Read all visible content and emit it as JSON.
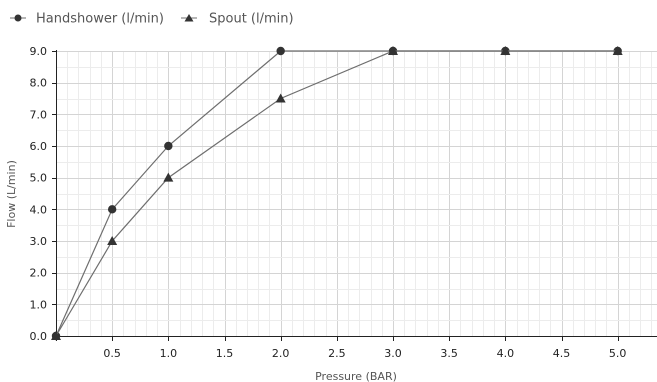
{
  "chart_data": {
    "type": "line",
    "xlabel": "Pressure (BAR)",
    "ylabel": "Flow (L/min)",
    "xlim": [
      0,
      5.35
    ],
    "ylim": [
      0,
      9
    ],
    "x_ticks": [
      "0.5",
      "1.0",
      "1.5",
      "2.0",
      "2.5",
      "3.0",
      "3.5",
      "4.0",
      "4.5",
      "5.0"
    ],
    "y_ticks": [
      "0.0",
      "1.0",
      "2.0",
      "3.0",
      "4.0",
      "5.0",
      "6.0",
      "7.0",
      "8.0",
      "9.0"
    ],
    "grid": true,
    "legend_position": "top-left",
    "series": [
      {
        "name": "Handshower (l/min)",
        "marker": "circle",
        "color": "#333333",
        "line_color": "#6e6e6e",
        "x": [
          0,
          0.5,
          1.0,
          2.0,
          3.0,
          4.0,
          5.0
        ],
        "y": [
          0,
          4,
          6,
          9,
          9,
          9,
          9
        ]
      },
      {
        "name": "Spout (l/min)",
        "marker": "triangle",
        "color": "#333333",
        "line_color": "#6e6e6e",
        "x": [
          0,
          0.5,
          1.0,
          2.0,
          3.0,
          4.0,
          5.0
        ],
        "y": [
          0,
          3,
          5,
          7.5,
          9,
          9,
          9
        ]
      }
    ]
  }
}
